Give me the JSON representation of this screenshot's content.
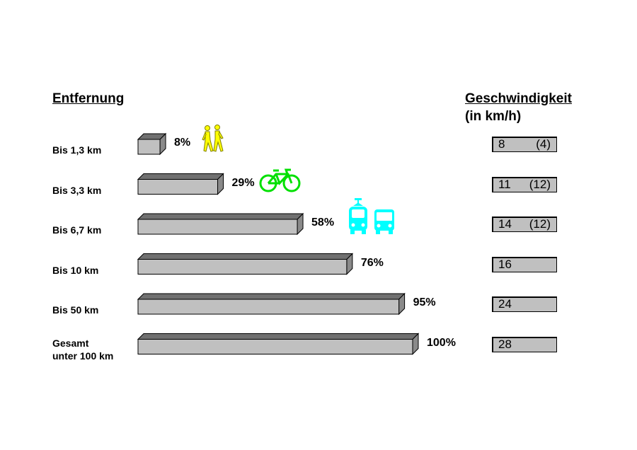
{
  "headings": {
    "left": "Entfernung",
    "right": "Geschwindigkeit",
    "right_sub": "(in km/h)"
  },
  "chart_data": {
    "type": "bar",
    "orientation": "horizontal",
    "categories": [
      "Bis 1,3 km",
      "Bis 3,3 km",
      "Bis 6,7 km",
      "Bis 10 km",
      "Bis 50 km",
      "Gesamt\nunter 100 km"
    ],
    "values": [
      8,
      29,
      58,
      76,
      95,
      100
    ],
    "value_labels": [
      "8%",
      "29%",
      "58%",
      "76%",
      "95%",
      "100%"
    ],
    "xlim": [
      0,
      100
    ],
    "bar_color": "#c0c0c0",
    "grid": false
  },
  "speeds": [
    {
      "main": "8",
      "paren": "(4)"
    },
    {
      "main": "11",
      "paren": "(12)"
    },
    {
      "main": "14",
      "paren": "(12)"
    },
    {
      "main": "16",
      "paren": ""
    },
    {
      "main": "24",
      "paren": ""
    },
    {
      "main": "28",
      "paren": ""
    }
  ],
  "icons": {
    "walking": {
      "name": "pedestrians-icon",
      "color": "#ffff00"
    },
    "bicycle": {
      "name": "bicycle-icon",
      "color": "#00ff00"
    },
    "tram": {
      "name": "tram-icon",
      "color": "#00ffff"
    },
    "bus": {
      "name": "bus-icon",
      "color": "#00ffff"
    }
  }
}
